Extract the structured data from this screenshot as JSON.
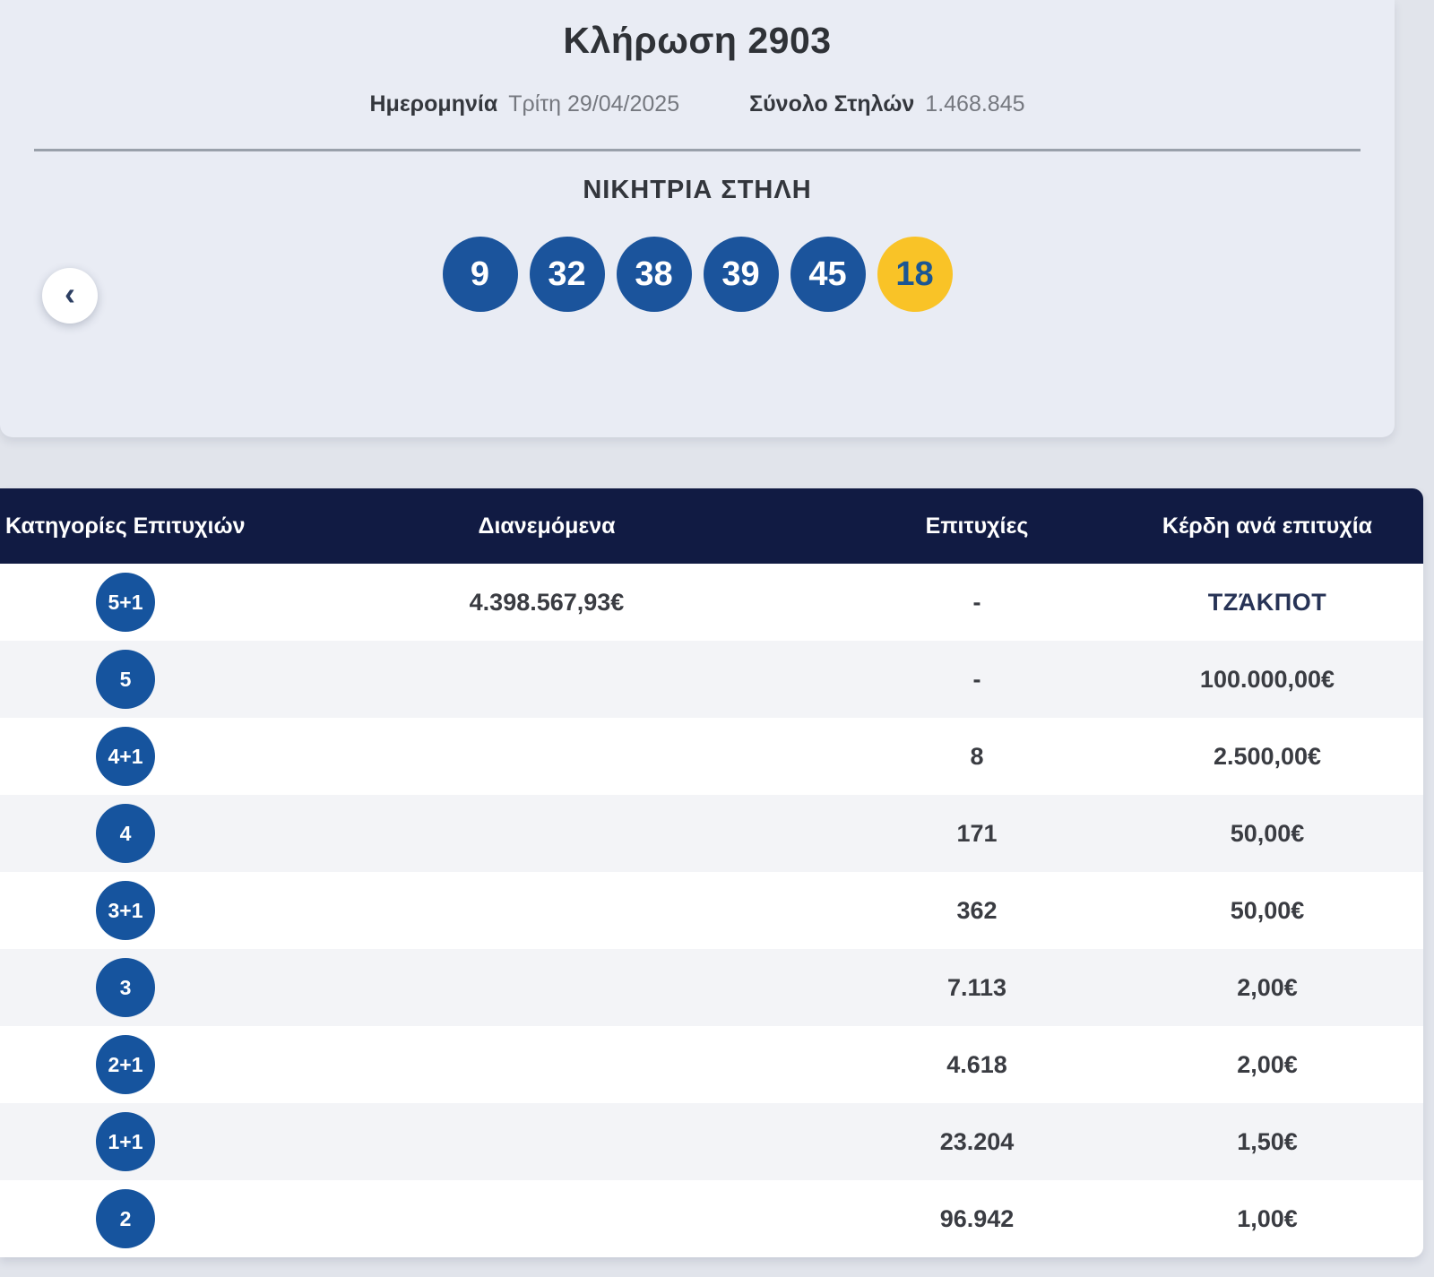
{
  "draw": {
    "title": "Κλήρωση 2903",
    "date_label": "Ημερομηνία",
    "date_value": "Τρίτη 29/04/2025",
    "columns_label": "Σύνολο Στηλών",
    "columns_value": "1.468.845",
    "winning_title": "ΝΙΚΗΤΡΙΑ ΣΤΗΛΗ",
    "numbers": [
      "9",
      "32",
      "38",
      "39",
      "45"
    ],
    "joker": "18"
  },
  "nav": {
    "prev_icon": "‹"
  },
  "table": {
    "headers": [
      "Κατηγορίες Επιτυχιών",
      "Διανεμόμενα",
      "Επιτυχίες",
      "Κέρδη ανά επιτυχία"
    ],
    "jackpot_text": "ΤΖΆΚΠΟΤ",
    "rows": [
      {
        "category": "5+1",
        "distributed": "4.398.567,93€",
        "wins": "-",
        "prize": "ΤΖΆΚΠΟΤ"
      },
      {
        "category": "5",
        "distributed": "",
        "wins": "-",
        "prize": "100.000,00€"
      },
      {
        "category": "4+1",
        "distributed": "",
        "wins": "8",
        "prize": "2.500,00€"
      },
      {
        "category": "4",
        "distributed": "",
        "wins": "171",
        "prize": "50,00€"
      },
      {
        "category": "3+1",
        "distributed": "",
        "wins": "362",
        "prize": "50,00€"
      },
      {
        "category": "3",
        "distributed": "",
        "wins": "7.113",
        "prize": "2,00€"
      },
      {
        "category": "2+1",
        "distributed": "",
        "wins": "4.618",
        "prize": "2,00€"
      },
      {
        "category": "1+1",
        "distributed": "",
        "wins": "23.204",
        "prize": "1,50€"
      },
      {
        "category": "2",
        "distributed": "",
        "wins": "96.942",
        "prize": "1,00€"
      }
    ]
  },
  "colors": {
    "ball_blue": "#1b549c",
    "joker_yellow": "#f9c327",
    "joker_text": "#1b5693",
    "table_header_navy": "#111b43",
    "card_bg": "#e9ecf4",
    "page_bg": "#e1e4eb",
    "row_alt_bg": "#f3f4f7",
    "jackpot_text_color": "#273356"
  }
}
